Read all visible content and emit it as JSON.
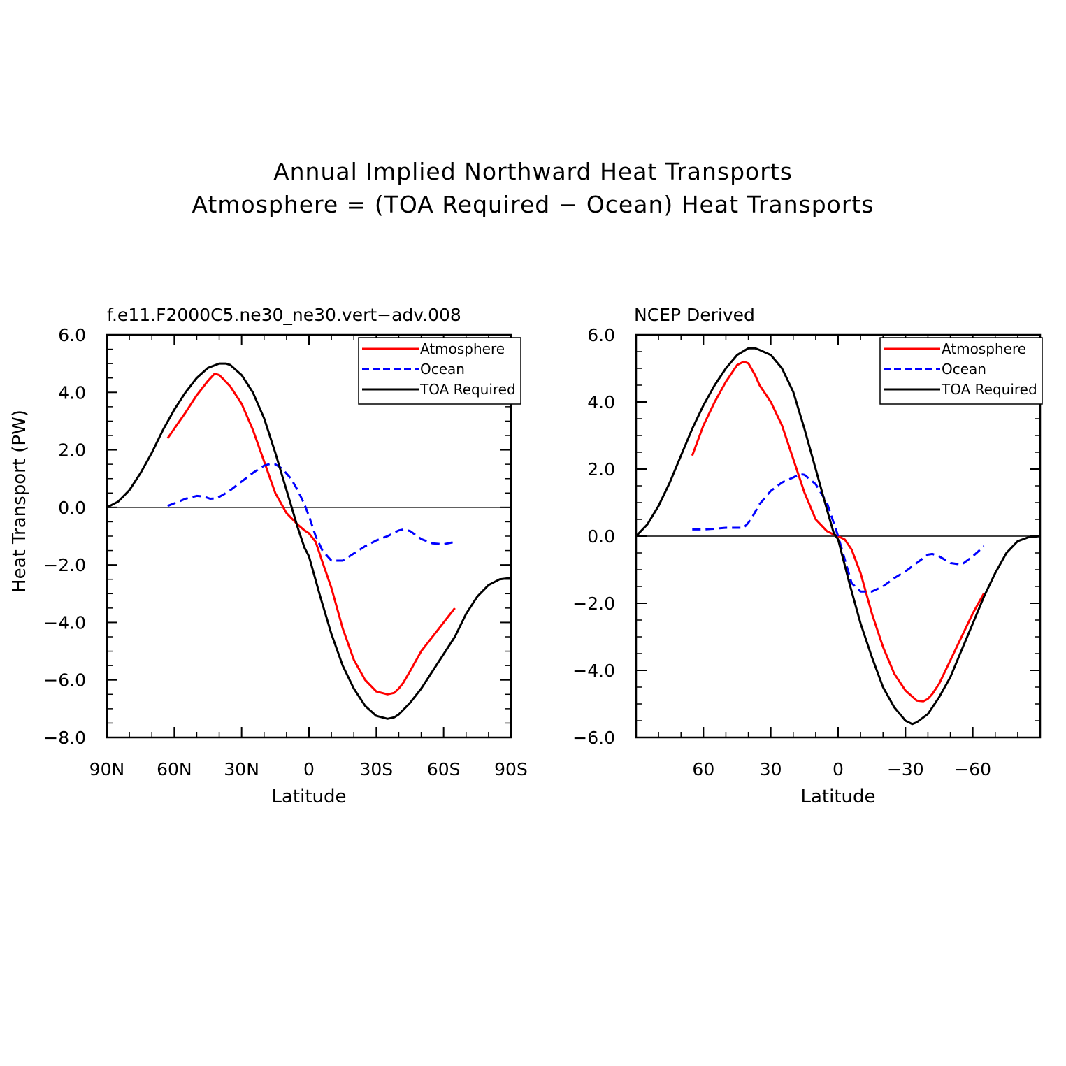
{
  "figure": {
    "title_line1": "Annual Implied Northward Heat Transports",
    "title_line2": "Atmosphere = (TOA Required − Ocean) Heat Transports"
  },
  "chart_data": [
    {
      "type": "line",
      "title": "f.e11.F2000C5.ne30_ne30.vert−adv.008",
      "xlabel": "Latitude",
      "ylabel": "Heat Transport (PW)",
      "xlim": [
        90,
        -90
      ],
      "ylim": [
        -8,
        6
      ],
      "x_ticks": [
        90,
        60,
        30,
        0,
        -30,
        -60,
        -90
      ],
      "x_tick_labels": [
        "90N",
        "60N",
        "30N",
        "0",
        "30S",
        "60S",
        "90S"
      ],
      "y_ticks": [
        6,
        4,
        2,
        0,
        -2,
        -4,
        -6,
        -8
      ],
      "y_tick_labels": [
        "6.0",
        "4.0",
        "2.0",
        "0.0",
        "−2.0",
        "−4.0",
        "−6.0",
        "−8.0"
      ],
      "zero_line": true,
      "legend": "top-right",
      "series": [
        {
          "name": "Atmosphere",
          "color": "#ff0000",
          "dash": "solid",
          "x": [
            63,
            55,
            50,
            45,
            42,
            40,
            38,
            35,
            30,
            25,
            20,
            15,
            10,
            5,
            2,
            0,
            -3,
            -6,
            -10,
            -15,
            -20,
            -25,
            -30,
            -35,
            -38,
            -40,
            -42,
            -45,
            -50,
            -55,
            -60,
            -65
          ],
          "y": [
            2.4,
            3.3,
            3.9,
            4.4,
            4.65,
            4.6,
            4.45,
            4.2,
            3.6,
            2.7,
            1.6,
            0.5,
            -0.2,
            -0.6,
            -0.8,
            -0.9,
            -1.2,
            -1.9,
            -2.8,
            -4.2,
            -5.3,
            -6.0,
            -6.4,
            -6.5,
            -6.45,
            -6.3,
            -6.1,
            -5.7,
            -5.0,
            -4.5,
            -4.0,
            -3.5
          ]
        },
        {
          "name": "Ocean",
          "color": "#0000ff",
          "dash": "dashed",
          "x": [
            63,
            58,
            55,
            50,
            47,
            44,
            41,
            38,
            35,
            30,
            25,
            20,
            17,
            15,
            12,
            8,
            5,
            2,
            0,
            -3,
            -6,
            -10,
            -15,
            -20,
            -25,
            -30,
            -35,
            -40,
            -42,
            -45,
            -50,
            -55,
            -60,
            -65
          ],
          "y": [
            0.05,
            0.2,
            0.3,
            0.4,
            0.38,
            0.3,
            0.32,
            0.45,
            0.6,
            0.9,
            1.2,
            1.45,
            1.52,
            1.5,
            1.35,
            1.0,
            0.6,
            0.1,
            -0.3,
            -1.0,
            -1.5,
            -1.85,
            -1.85,
            -1.6,
            -1.35,
            -1.15,
            -1.0,
            -0.8,
            -0.77,
            -0.82,
            -1.1,
            -1.25,
            -1.28,
            -1.2
          ]
        },
        {
          "name": "TOA Required",
          "color": "#000000",
          "dash": "solid",
          "x": [
            90,
            85,
            80,
            75,
            70,
            65,
            60,
            55,
            50,
            45,
            40,
            37,
            35,
            30,
            25,
            20,
            15,
            10,
            5,
            2,
            0,
            -5,
            -10,
            -15,
            -20,
            -25,
            -30,
            -35,
            -38,
            -40,
            -45,
            -50,
            -55,
            -60,
            -65,
            -70,
            -75,
            -80,
            -85,
            -90
          ],
          "y": [
            0.0,
            0.2,
            0.6,
            1.2,
            1.9,
            2.7,
            3.4,
            4.0,
            4.5,
            4.85,
            5.0,
            5.0,
            4.95,
            4.6,
            4.0,
            3.1,
            1.9,
            0.6,
            -0.7,
            -1.4,
            -1.7,
            -3.1,
            -4.4,
            -5.5,
            -6.3,
            -6.9,
            -7.25,
            -7.35,
            -7.3,
            -7.2,
            -6.8,
            -6.3,
            -5.7,
            -5.1,
            -4.5,
            -3.7,
            -3.1,
            -2.7,
            -2.5,
            -2.45
          ]
        }
      ]
    },
    {
      "type": "line",
      "title": "NCEP Derived",
      "xlabel": "Latitude",
      "ylabel": "",
      "xlim": [
        90,
        -90
      ],
      "ylim": [
        -6,
        6
      ],
      "x_ticks": [
        60,
        30,
        0,
        -30,
        -60
      ],
      "x_tick_labels": [
        "60",
        "30",
        "0",
        "−30",
        "−60"
      ],
      "y_ticks": [
        6,
        4,
        2,
        0,
        -2,
        -4,
        -6
      ],
      "y_tick_labels": [
        "6.0",
        "4.0",
        "2.0",
        "0.0",
        "−2.0",
        "−4.0",
        "−6.0"
      ],
      "zero_line": true,
      "legend": "top-right",
      "series": [
        {
          "name": "Atmosphere",
          "color": "#ff0000",
          "dash": "solid",
          "x": [
            65,
            60,
            55,
            50,
            45,
            42,
            40,
            37,
            35,
            30,
            25,
            20,
            15,
            10,
            5,
            2,
            0,
            -3,
            -6,
            -10,
            -15,
            -20,
            -25,
            -30,
            -35,
            -38,
            -40,
            -42,
            -45,
            -50,
            -55,
            -60,
            -65
          ],
          "y": [
            2.4,
            3.3,
            4.0,
            4.6,
            5.1,
            5.2,
            5.15,
            4.8,
            4.5,
            4.0,
            3.3,
            2.3,
            1.3,
            0.5,
            0.15,
            0.05,
            0.0,
            -0.1,
            -0.4,
            -1.1,
            -2.3,
            -3.3,
            -4.1,
            -4.6,
            -4.9,
            -4.92,
            -4.85,
            -4.7,
            -4.4,
            -3.7,
            -3.0,
            -2.3,
            -1.7
          ]
        },
        {
          "name": "Ocean",
          "color": "#0000ff",
          "dash": "dashed",
          "x": [
            65,
            60,
            55,
            50,
            45,
            42,
            40,
            38,
            35,
            30,
            25,
            20,
            17,
            15,
            10,
            5,
            2,
            0,
            -3,
            -6,
            -10,
            -15,
            -20,
            -25,
            -30,
            -35,
            -40,
            -42,
            -45,
            -50,
            -55,
            -60,
            -65
          ],
          "y": [
            0.2,
            0.2,
            0.22,
            0.25,
            0.25,
            0.25,
            0.4,
            0.6,
            0.95,
            1.35,
            1.6,
            1.75,
            1.85,
            1.83,
            1.55,
            1.0,
            0.4,
            0.0,
            -0.7,
            -1.4,
            -1.65,
            -1.65,
            -1.5,
            -1.25,
            -1.05,
            -0.8,
            -0.55,
            -0.53,
            -0.6,
            -0.8,
            -0.85,
            -0.6,
            -0.3
          ]
        },
        {
          "name": "TOA Required",
          "color": "#000000",
          "dash": "solid",
          "x": [
            90,
            85,
            80,
            75,
            70,
            65,
            60,
            55,
            50,
            45,
            40,
            37,
            35,
            30,
            25,
            20,
            15,
            10,
            5,
            2,
            0,
            -5,
            -10,
            -15,
            -20,
            -25,
            -30,
            -33,
            -35,
            -40,
            -45,
            -50,
            -55,
            -60,
            -65,
            -70,
            -75,
            -80,
            -85,
            -90
          ],
          "y": [
            0.0,
            0.35,
            0.9,
            1.6,
            2.4,
            3.2,
            3.9,
            4.5,
            5.0,
            5.4,
            5.6,
            5.6,
            5.55,
            5.4,
            5.0,
            4.3,
            3.2,
            2.0,
            0.8,
            0.1,
            -0.1,
            -1.4,
            -2.6,
            -3.6,
            -4.5,
            -5.1,
            -5.5,
            -5.6,
            -5.55,
            -5.3,
            -4.8,
            -4.2,
            -3.4,
            -2.6,
            -1.8,
            -1.1,
            -0.5,
            -0.15,
            -0.03,
            0.0
          ]
        }
      ]
    }
  ]
}
